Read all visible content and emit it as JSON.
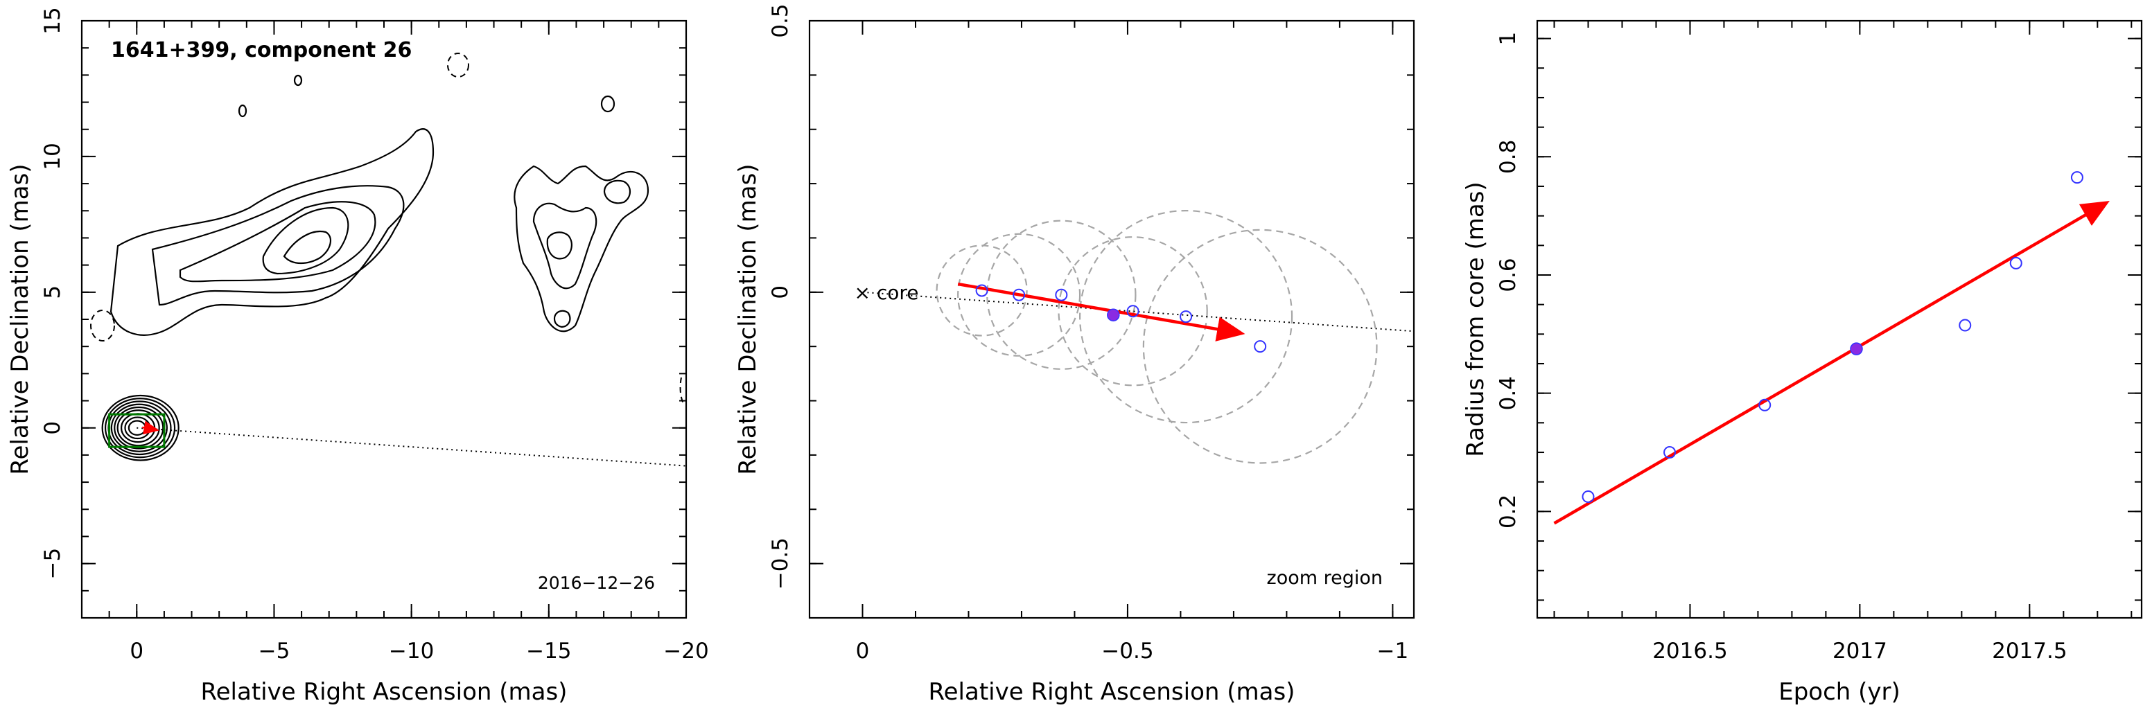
{
  "chart_data": [
    {
      "type": "scatter",
      "title": "1641+399, component 26",
      "xlabel": "Relative Right Ascension (mas)",
      "ylabel": "Relative Declination (mas)",
      "xlim": [
        2,
        -20
      ],
      "ylim": [
        -7,
        15
      ],
      "xticks": [
        0,
        -5,
        -10,
        -15,
        -20
      ],
      "yticks": [
        -5,
        0,
        5,
        10,
        15
      ],
      "xtick_labels": [
        "0",
        "−5",
        "−10",
        "−15",
        "−20"
      ],
      "ytick_labels": [
        "−5",
        "0",
        "5",
        "10",
        "15"
      ],
      "date_label": "2016−12−26",
      "zoom_box": {
        "x": [
          1,
          -1
        ],
        "y": [
          -0.7,
          0.5
        ]
      },
      "jet_direction_line": {
        "x": [
          0,
          -20
        ],
        "y": [
          0,
          -1.4
        ]
      },
      "colors": {
        "contour": "#000000",
        "zoom_box": "#007a00",
        "arrow": "#ff0000"
      }
    },
    {
      "type": "scatter",
      "xlabel": "Relative Right Ascension (mas)",
      "ylabel": "Relative Declination (mas)",
      "xlim": [
        0.1,
        -1.04
      ],
      "ylim": [
        -0.6,
        0.5
      ],
      "xticks": [
        0,
        -0.5,
        -1
      ],
      "yticks": [
        -0.5,
        0,
        0.5
      ],
      "xtick_labels": [
        "0",
        "−0.5",
        "−1"
      ],
      "ytick_labels": [
        "−0.5",
        "0",
        "0.5"
      ],
      "core_label": "× core",
      "zoom_label": "zoom region",
      "series": [
        {
          "x": [
            -0.225,
            -0.295,
            -0.375,
            -0.51,
            -0.61,
            -0.75
          ],
          "y": [
            0.003,
            -0.005,
            -0.005,
            -0.035,
            -0.045,
            -0.1
          ],
          "radius": [
            0.085,
            0.115,
            0.14,
            0.14,
            0.2,
            0.22
          ]
        }
      ],
      "highlight_point": {
        "x": -0.473,
        "y": -0.042
      },
      "arrow": {
        "x": [
          -0.18,
          -0.71
        ],
        "y": [
          0.015,
          -0.075
        ]
      },
      "jet_direction_line": {
        "x": [
          0,
          -1.04
        ],
        "y": [
          0,
          -0.072
        ]
      },
      "colors": {
        "points": "#3333ff",
        "highlight": "#8a2be2",
        "arrow": "#ff0000",
        "circles": "#a6a6a6"
      }
    },
    {
      "type": "scatter",
      "xlabel": "Epoch (yr)",
      "ylabel": "Radius from core (mas)",
      "xlim": [
        2016.05,
        2017.83
      ],
      "ylim": [
        0.02,
        1.03
      ],
      "xticks": [
        2016.5,
        2017,
        2017.5
      ],
      "yticks": [
        0.2,
        0.4,
        0.6,
        0.8,
        1
      ],
      "xtick_labels": [
        "2016.5",
        "2017",
        "2017.5"
      ],
      "ytick_labels": [
        "0.2",
        "0.4",
        "0.6",
        "0.8",
        "1"
      ],
      "series": [
        {
          "x": [
            2016.2,
            2016.44,
            2016.72,
            2017.31,
            2017.46,
            2017.64
          ],
          "y": [
            0.225,
            0.3,
            0.38,
            0.515,
            0.62,
            0.765
          ]
        }
      ],
      "highlight_point": {
        "x": 2016.99,
        "y": 0.475
      },
      "fit_arrow": {
        "x": [
          2016.1,
          2017.72
        ],
        "y": [
          0.18,
          0.72
        ]
      },
      "colors": {
        "points": "#3333ff",
        "highlight": "#8a2be2",
        "arrow": "#ff0000"
      }
    }
  ]
}
